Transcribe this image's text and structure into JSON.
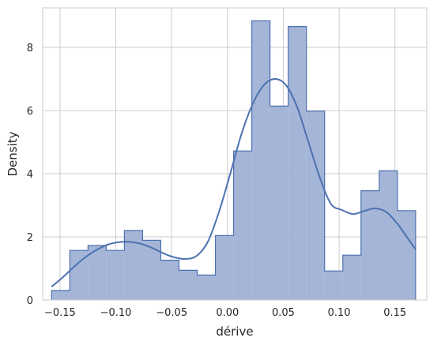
{
  "chart_data": {
    "type": "histogram",
    "title": "",
    "xlabel": "dérive",
    "ylabel": "Density",
    "xlim": [
      -0.1655,
      0.1785
    ],
    "ylim": [
      0,
      9.25
    ],
    "xticks": [
      -0.15,
      -0.1,
      -0.05,
      0.0,
      0.05,
      0.1,
      0.15
    ],
    "xtick_labels": [
      "−0.15",
      "−0.10",
      "−0.05",
      "0.00",
      "0.05",
      "0.10",
      "0.15"
    ],
    "yticks": [
      0,
      2,
      4,
      6,
      8
    ],
    "ytick_labels": [
      "0",
      "2",
      "4",
      "6",
      "8"
    ],
    "grid": true,
    "legend": "none",
    "bins": {
      "edges": [
        -0.1575,
        -0.1412,
        -0.1249,
        -0.1086,
        -0.0923,
        -0.076,
        -0.0597,
        -0.0434,
        -0.0271,
        -0.0108,
        0.0055,
        0.0218,
        0.0381,
        0.0544,
        0.0707,
        0.087,
        0.1033,
        0.1196,
        0.1359,
        0.1522,
        0.1685
      ],
      "densities": [
        0.3,
        1.57,
        1.73,
        1.57,
        2.2,
        1.89,
        1.26,
        0.94,
        0.79,
        2.04,
        4.72,
        8.84,
        6.14,
        8.66,
        5.98,
        0.92,
        1.42,
        3.46,
        4.09,
        2.83
      ]
    },
    "kde": {
      "x": [
        -0.1575,
        -0.1475,
        -0.1375,
        -0.1275,
        -0.1175,
        -0.1075,
        -0.0975,
        -0.0875,
        -0.0775,
        -0.0675,
        -0.0575,
        -0.0475,
        -0.0375,
        -0.0275,
        -0.0175,
        -0.0075,
        0.0025,
        0.0125,
        0.0225,
        0.0325,
        0.0425,
        0.0525,
        0.0625,
        0.0725,
        0.0825,
        0.0925,
        0.1025,
        0.1125,
        0.1225,
        0.1325,
        0.1425,
        0.1525,
        0.1625,
        0.1685
      ],
      "y": [
        0.42,
        0.72,
        1.05,
        1.35,
        1.58,
        1.75,
        1.83,
        1.84,
        1.78,
        1.65,
        1.48,
        1.35,
        1.3,
        1.4,
        1.85,
        2.8,
        4.0,
        5.25,
        6.2,
        6.8,
        7.0,
        6.8,
        6.1,
        5.0,
        3.9,
        3.05,
        2.85,
        2.72,
        2.82,
        2.9,
        2.78,
        2.4,
        1.9,
        1.6
      ]
    },
    "colors": {
      "bar_fill": "#a4b5d7",
      "bar_edge": "#4c72b0",
      "kde_line": "#4c72b0",
      "grid": "#cccccc",
      "frame": "#cccccc",
      "text": "#262626"
    }
  }
}
